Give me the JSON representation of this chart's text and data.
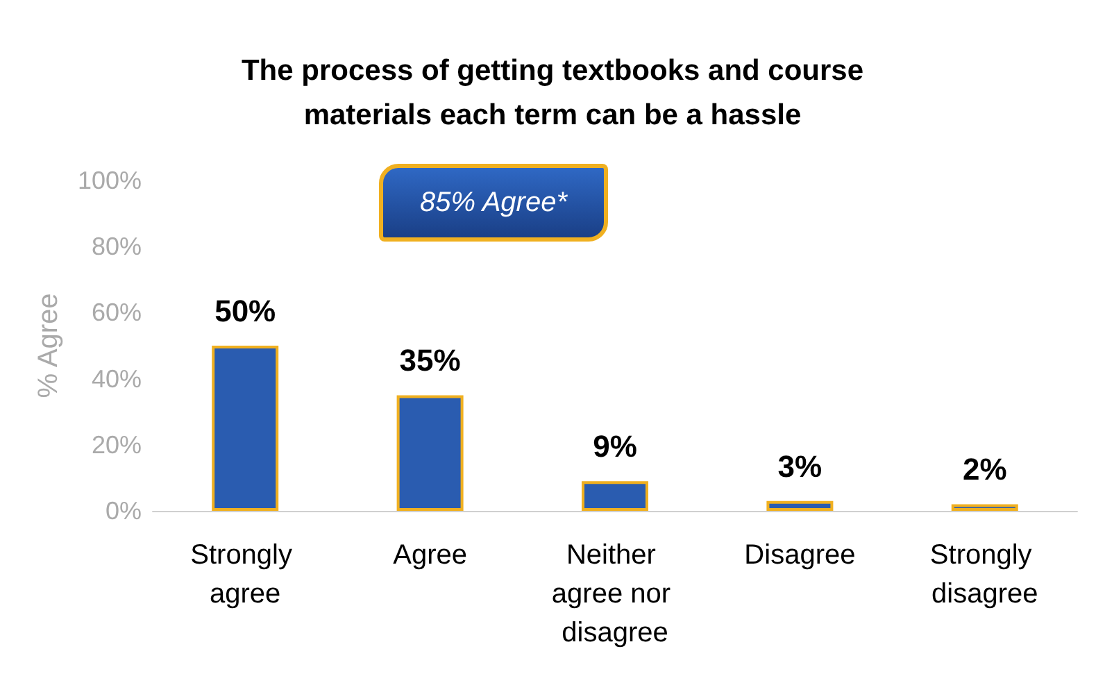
{
  "chart_data": {
    "type": "bar",
    "title": "The process of getting textbooks and course\nmaterials each term can be a hassle",
    "ylabel": "% Agree",
    "categories": [
      "Strongly agree",
      "Agree",
      "Neither agree nor disagree",
      "Disagree",
      "Strongly disagree"
    ],
    "values": [
      50,
      35,
      9,
      3,
      2
    ],
    "color": "#2a5cb0",
    "value_labels": [
      "50%",
      "35%",
      "9%",
      "3%",
      "2%"
    ],
    "ylim": [
      0,
      100
    ],
    "yticks": [
      {
        "value": 0,
        "label": "0%"
      },
      {
        "value": 20,
        "label": "20%"
      },
      {
        "value": 40,
        "label": "40%"
      },
      {
        "value": 60,
        "label": "60%"
      },
      {
        "value": 80,
        "label": "80%"
      },
      {
        "value": 100,
        "label": "100%"
      }
    ],
    "annotations": [
      "85% Agree*"
    ]
  }
}
